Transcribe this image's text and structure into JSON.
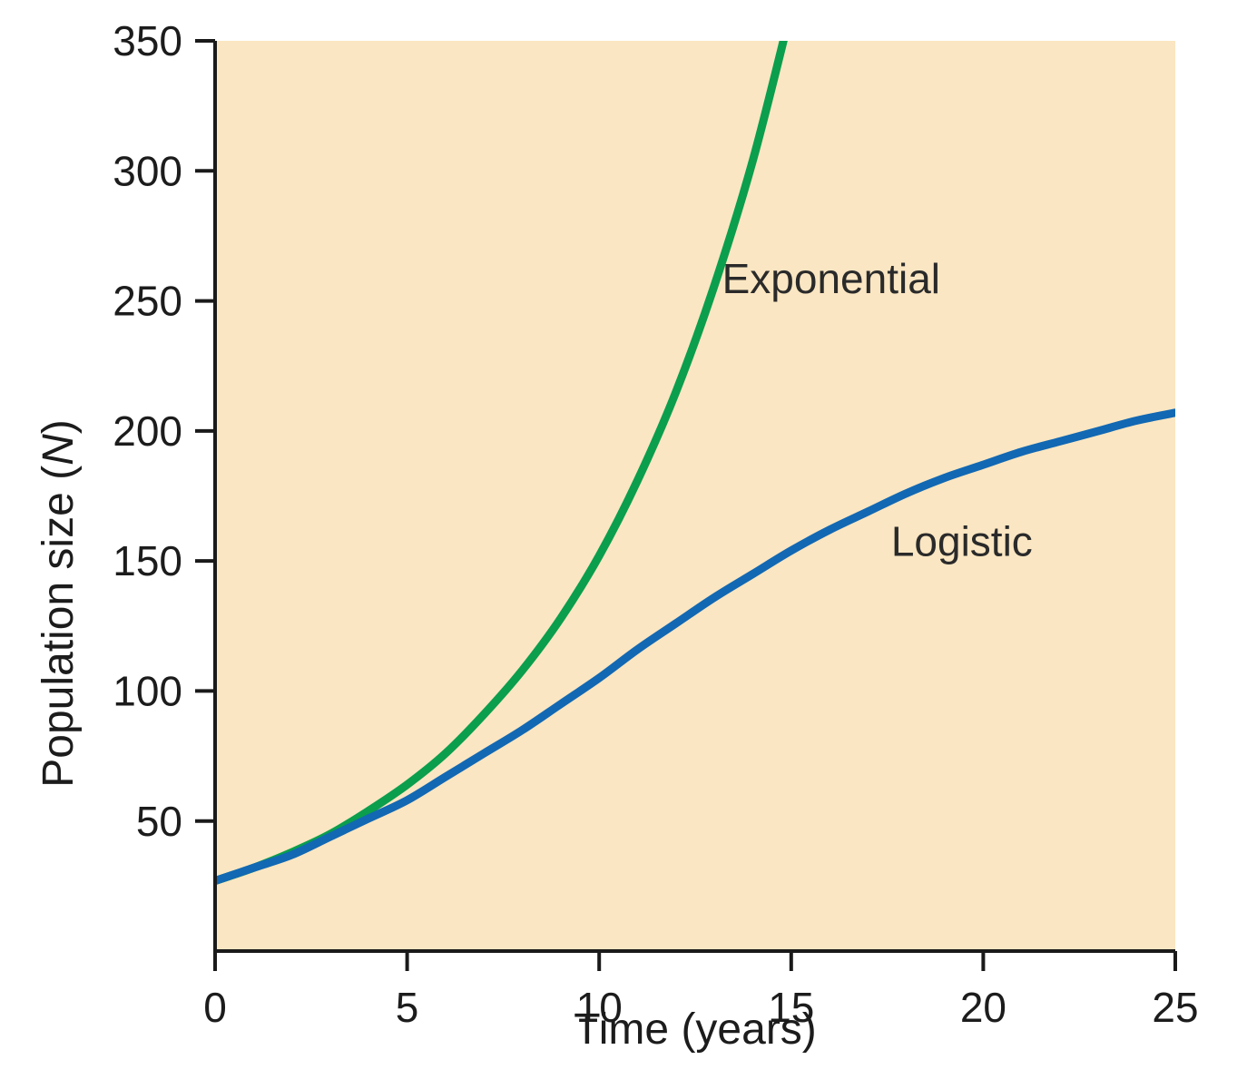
{
  "figure": {
    "background": "#ffffff"
  },
  "chart_data": {
    "type": "line",
    "title": "",
    "xlabel": "Time (years)",
    "ylabel": "Population size (N)",
    "ylabel_parts": {
      "prefix": "Population size (",
      "variable": "N",
      "suffix": ")"
    },
    "xlim": [
      0,
      25
    ],
    "ylim": [
      0,
      350
    ],
    "xticks": [
      0,
      5,
      10,
      15,
      20,
      25
    ],
    "yticks": [
      50,
      100,
      150,
      200,
      250,
      300,
      350
    ],
    "grid": false,
    "legend_position": "inline-labels",
    "plot_background": "#fae6c2",
    "axis_color": "#1a1a1a",
    "series": [
      {
        "name": "Exponential",
        "label": "Exponential",
        "color": "#0b9e4d",
        "x": [
          0,
          1,
          2,
          3,
          4,
          5,
          6,
          7,
          8,
          9,
          10,
          11,
          12,
          13,
          14,
          15
        ],
        "y": [
          27,
          32,
          38,
          45,
          54,
          64,
          76,
          91,
          108,
          128,
          152,
          181,
          215,
          256,
          304,
          362
        ],
        "label_pos": {
          "x": 13.2,
          "y": 253
        },
        "label_anchor": "start"
      },
      {
        "name": "Logistic",
        "label": "Logistic",
        "color": "#1268b3",
        "x": [
          0,
          1,
          2,
          3,
          4,
          5,
          6,
          7,
          8,
          9,
          10,
          11,
          12,
          13,
          14,
          15,
          16,
          17,
          18,
          19,
          20,
          21,
          22,
          23,
          24,
          25
        ],
        "y": [
          27,
          32,
          37,
          44,
          51,
          58,
          67,
          76,
          85,
          95,
          105,
          116,
          126,
          136,
          145,
          154,
          162,
          169,
          176,
          182,
          187,
          192,
          196,
          200,
          204,
          207
        ],
        "label_pos": {
          "x": 17.6,
          "y": 152
        },
        "label_anchor": "start"
      }
    ]
  }
}
